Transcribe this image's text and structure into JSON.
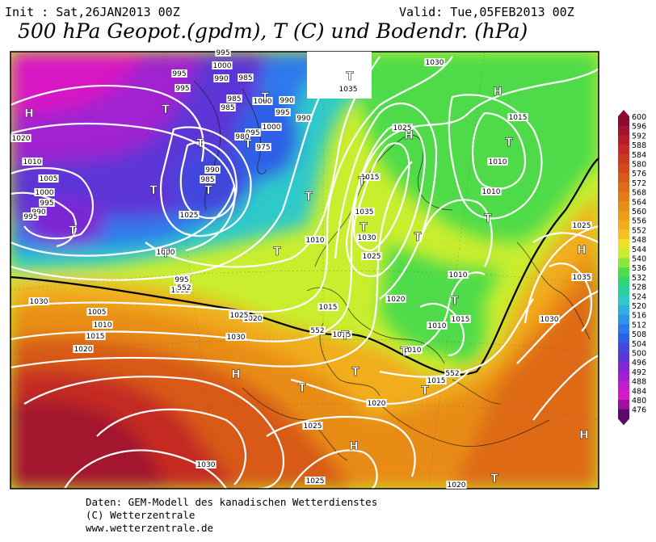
{
  "header": {
    "init": "Init : Sat,26JAN2013 00Z",
    "valid": "Valid: Tue,05FEB2013 00Z",
    "title": "500 hPa Geopot.(gpdm), T (C) und Bodendr. (hPa)"
  },
  "legend": {
    "labels": [
      "600",
      "596",
      "592",
      "588",
      "584",
      "580",
      "576",
      "572",
      "568",
      "564",
      "560",
      "556",
      "552",
      "548",
      "544",
      "540",
      "536",
      "532",
      "528",
      "524",
      "520",
      "516",
      "512",
      "508",
      "504",
      "500",
      "496",
      "492",
      "488",
      "484",
      "480",
      "476"
    ],
    "colors": [
      "#8b0a2e",
      "#a3122f",
      "#b81b2a",
      "#c52a24",
      "#cd3a1f",
      "#d4481a",
      "#d85a17",
      "#de6b15",
      "#e37c15",
      "#e88c18",
      "#ed9c1a",
      "#f1ad1d",
      "#f5c022",
      "#f1e02a",
      "#c9ee2e",
      "#8ce63a",
      "#4fdb4a",
      "#2fd674",
      "#2acfa0",
      "#2fc9c9",
      "#2fb1e0",
      "#2e95ea",
      "#2d79ec",
      "#2f5ee6",
      "#4347dc",
      "#5d35d6",
      "#7d28d4",
      "#a020d0",
      "#c21ccc",
      "#d818c4",
      "#a010a0",
      "#5a0a6a"
    ]
  },
  "pressure_labels": [
    {
      "t": "995"
    },
    {
      "t": "1000"
    },
    {
      "t": "995"
    },
    {
      "t": "990"
    },
    {
      "t": "995"
    },
    {
      "t": "985"
    },
    {
      "t": "985"
    },
    {
      "t": "1000"
    },
    {
      "t": "990"
    },
    {
      "t": "995"
    },
    {
      "t": "990"
    },
    {
      "t": "1000"
    },
    {
      "t": "995"
    },
    {
      "t": "980"
    },
    {
      "t": "975"
    },
    {
      "t": "985"
    },
    {
      "t": "990"
    },
    {
      "t": "985"
    },
    {
      "t": "1025"
    },
    {
      "t": "1020"
    },
    {
      "t": "1010"
    },
    {
      "t": "1005"
    },
    {
      "t": "1000"
    },
    {
      "t": "995"
    },
    {
      "t": "990"
    },
    {
      "t": "995"
    },
    {
      "t": "1000"
    },
    {
      "t": "995"
    },
    {
      "t": "1005"
    },
    {
      "t": "1030"
    },
    {
      "t": "1030"
    },
    {
      "t": "1035"
    },
    {
      "t": "1025"
    },
    {
      "t": "1015"
    },
    {
      "t": "1010"
    },
    {
      "t": "1035"
    },
    {
      "t": "1030"
    },
    {
      "t": "1025"
    },
    {
      "t": "1020"
    },
    {
      "t": "1015"
    },
    {
      "t": "1015"
    },
    {
      "t": "1010"
    },
    {
      "t": "1010"
    },
    {
      "t": "1010"
    },
    {
      "t": "1015"
    },
    {
      "t": "1010"
    },
    {
      "t": "1010"
    },
    {
      "t": "1015"
    },
    {
      "t": "1025"
    },
    {
      "t": "1035"
    },
    {
      "t": "1030"
    },
    {
      "t": "1020"
    },
    {
      "t": "1025"
    },
    {
      "t": "1030"
    },
    {
      "t": "1005"
    },
    {
      "t": "1010"
    },
    {
      "t": "1015"
    },
    {
      "t": "1020"
    },
    {
      "t": "1015"
    },
    {
      "t": "1020"
    },
    {
      "t": "1025"
    },
    {
      "t": "1030"
    },
    {
      "t": "1025"
    },
    {
      "t": "1020"
    },
    {
      "t": "552"
    },
    {
      "t": "552"
    },
    {
      "t": "552"
    }
  ],
  "pressure_centers": [
    {
      "t": "H"
    },
    {
      "t": "T"
    },
    {
      "t": "T"
    },
    {
      "t": "T"
    },
    {
      "t": "T"
    },
    {
      "t": "T"
    },
    {
      "t": "T"
    },
    {
      "t": "T"
    },
    {
      "t": "T"
    },
    {
      "t": "T"
    },
    {
      "t": "T"
    },
    {
      "t": "T"
    },
    {
      "t": "H"
    },
    {
      "t": "T"
    },
    {
      "t": "T"
    },
    {
      "t": "H"
    },
    {
      "t": "T"
    },
    {
      "t": "T"
    },
    {
      "t": "T"
    },
    {
      "t": "T"
    },
    {
      "t": "H"
    },
    {
      "t": "H"
    },
    {
      "t": "T"
    },
    {
      "t": "T"
    },
    {
      "t": "H"
    },
    {
      "t": "T"
    },
    {
      "t": "T"
    },
    {
      "t": "H"
    },
    {
      "t": "T"
    },
    {
      "t": "T"
    }
  ],
  "footer": {
    "line1": "Daten: GEM-Modell des kanadischen Wetterdienstes",
    "line2": "(C) Wetterzentrale",
    "line3": "www.wetterzentrale.de"
  }
}
